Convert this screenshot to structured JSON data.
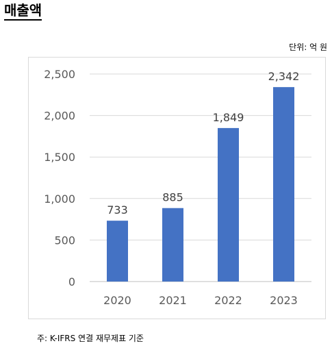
{
  "heading": "매출액",
  "unit_label": "단위: 억 원",
  "footnote": "주: K-IFRS 연결 재무제표 기준",
  "chart_data": {
    "type": "bar",
    "categories": [
      "2020",
      "2021",
      "2022",
      "2023"
    ],
    "values": [
      733,
      885,
      1849,
      2342
    ],
    "value_labels": [
      "733",
      "885",
      "1,849",
      "2,342"
    ],
    "title": "",
    "xlabel": "",
    "ylabel": "",
    "ylim": [
      0,
      2500
    ],
    "yticks": [
      0,
      500,
      1000,
      1500,
      2000,
      2500
    ],
    "ytick_labels": [
      "0",
      "500",
      "1,000",
      "1,500",
      "2,000",
      "2,500"
    ],
    "bar_color": "#4472c4",
    "grid": true,
    "legend": false
  }
}
